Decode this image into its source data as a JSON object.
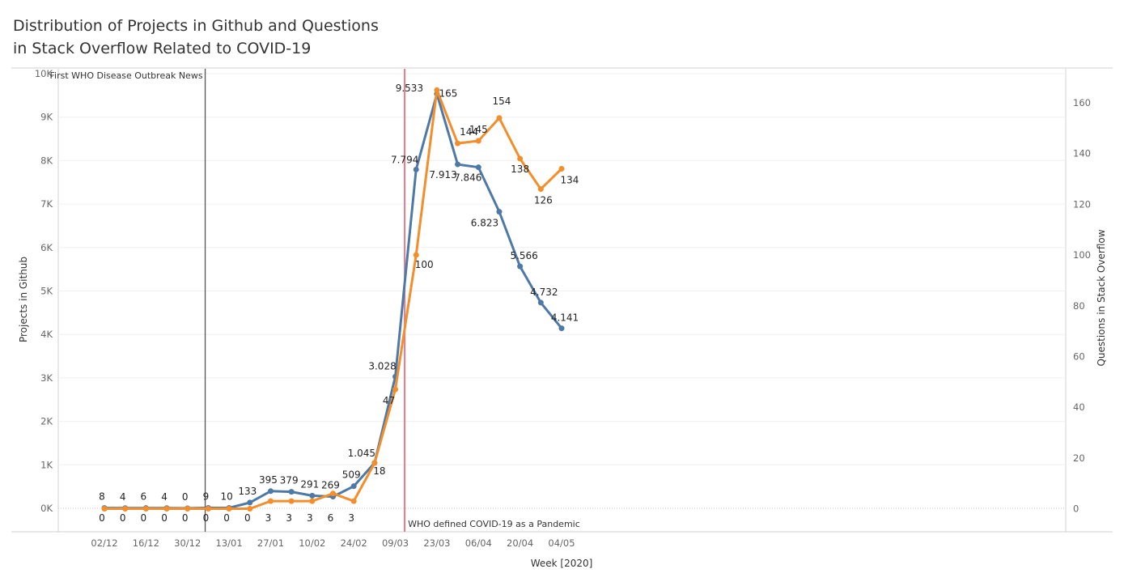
{
  "title_lines": [
    "Distribution of Projects in Github and Questions",
    "in Stack Overflow Related to COVID-19"
  ],
  "colors": {
    "github": "#4e79a7",
    "stackoverflow": "#f28e2b",
    "pandemic_line": "#e07b8a",
    "who_line": "#555555"
  },
  "chart_data": {
    "type": "line",
    "xlabel": "Week [2020]",
    "ylabel_left": "Projects in Github",
    "ylabel_right": "Questions in Stack Overflow",
    "ylim_left": [
      0,
      10000
    ],
    "ylim_right": [
      -5,
      175
    ],
    "left_ticks": [
      {
        "value": 0,
        "label": "0K"
      },
      {
        "value": 1000,
        "label": "1K"
      },
      {
        "value": 2000,
        "label": "2K"
      },
      {
        "value": 3000,
        "label": "3K"
      },
      {
        "value": 4000,
        "label": "4K"
      },
      {
        "value": 5000,
        "label": "5K"
      },
      {
        "value": 6000,
        "label": "6K"
      },
      {
        "value": 7000,
        "label": "7K"
      },
      {
        "value": 8000,
        "label": "8K"
      },
      {
        "value": 9000,
        "label": "9K"
      },
      {
        "value": 10000,
        "label": "10K"
      }
    ],
    "right_ticks": [
      0,
      20,
      40,
      60,
      80,
      100,
      120,
      140,
      160
    ],
    "x_tick_labels": [
      "02/12",
      "16/12",
      "30/12",
      "13/01",
      "27/01",
      "10/02",
      "24/02",
      "09/03",
      "23/03",
      "06/04",
      "20/04",
      "04/05"
    ],
    "weeks": [
      "02/12",
      "09/12",
      "16/12",
      "23/12",
      "30/12",
      "06/01",
      "13/01",
      "20/01",
      "27/01",
      "03/02",
      "10/02",
      "17/02",
      "24/02",
      "02/03",
      "09/03",
      "16/03",
      "23/03",
      "30/03",
      "06/04",
      "13/04",
      "20/04",
      "27/04",
      "04/05"
    ],
    "series": [
      {
        "name": "",
        "axis": "left",
        "color": "#4e79a7",
        "values": [
          8,
          4,
          6,
          4,
          0,
          9,
          10,
          133,
          395,
          379,
          291,
          269,
          509,
          1045,
          3028,
          7794,
          9533,
          7913,
          7846,
          6823,
          5566,
          4732,
          4141
        ],
        "labels": [
          "8",
          "4",
          "6",
          "4",
          "0",
          "9",
          "10",
          "133",
          "395",
          "379",
          "291",
          "269",
          "509",
          "1.045",
          "3.028",
          "7.794",
          "9.533",
          "7.913",
          "7.846",
          "6.823",
          "5.566",
          "4.732",
          "4.141"
        ]
      },
      {
        "name": "",
        "axis": "right",
        "color": "#f28e2b",
        "values": [
          0,
          0,
          0,
          0,
          0,
          0,
          0,
          0,
          3,
          3,
          3,
          6,
          3,
          18,
          47,
          100,
          165,
          144,
          145,
          154,
          138,
          126,
          134
        ],
        "labels": [
          "0",
          "0",
          "0",
          "0",
          "0",
          "0",
          "0",
          "0",
          "3",
          "3",
          "3",
          "6",
          "3",
          "18",
          "47",
          "100",
          "165",
          "144",
          "145",
          "154",
          "138",
          "126",
          "134"
        ]
      }
    ],
    "annotations": [
      {
        "text": "First WHO Disease Outbreak News",
        "at_week_index": 4.85
      },
      {
        "text": "WHO defined COVID-19 as a Pandemic",
        "at_week_index": 14.45
      }
    ]
  }
}
